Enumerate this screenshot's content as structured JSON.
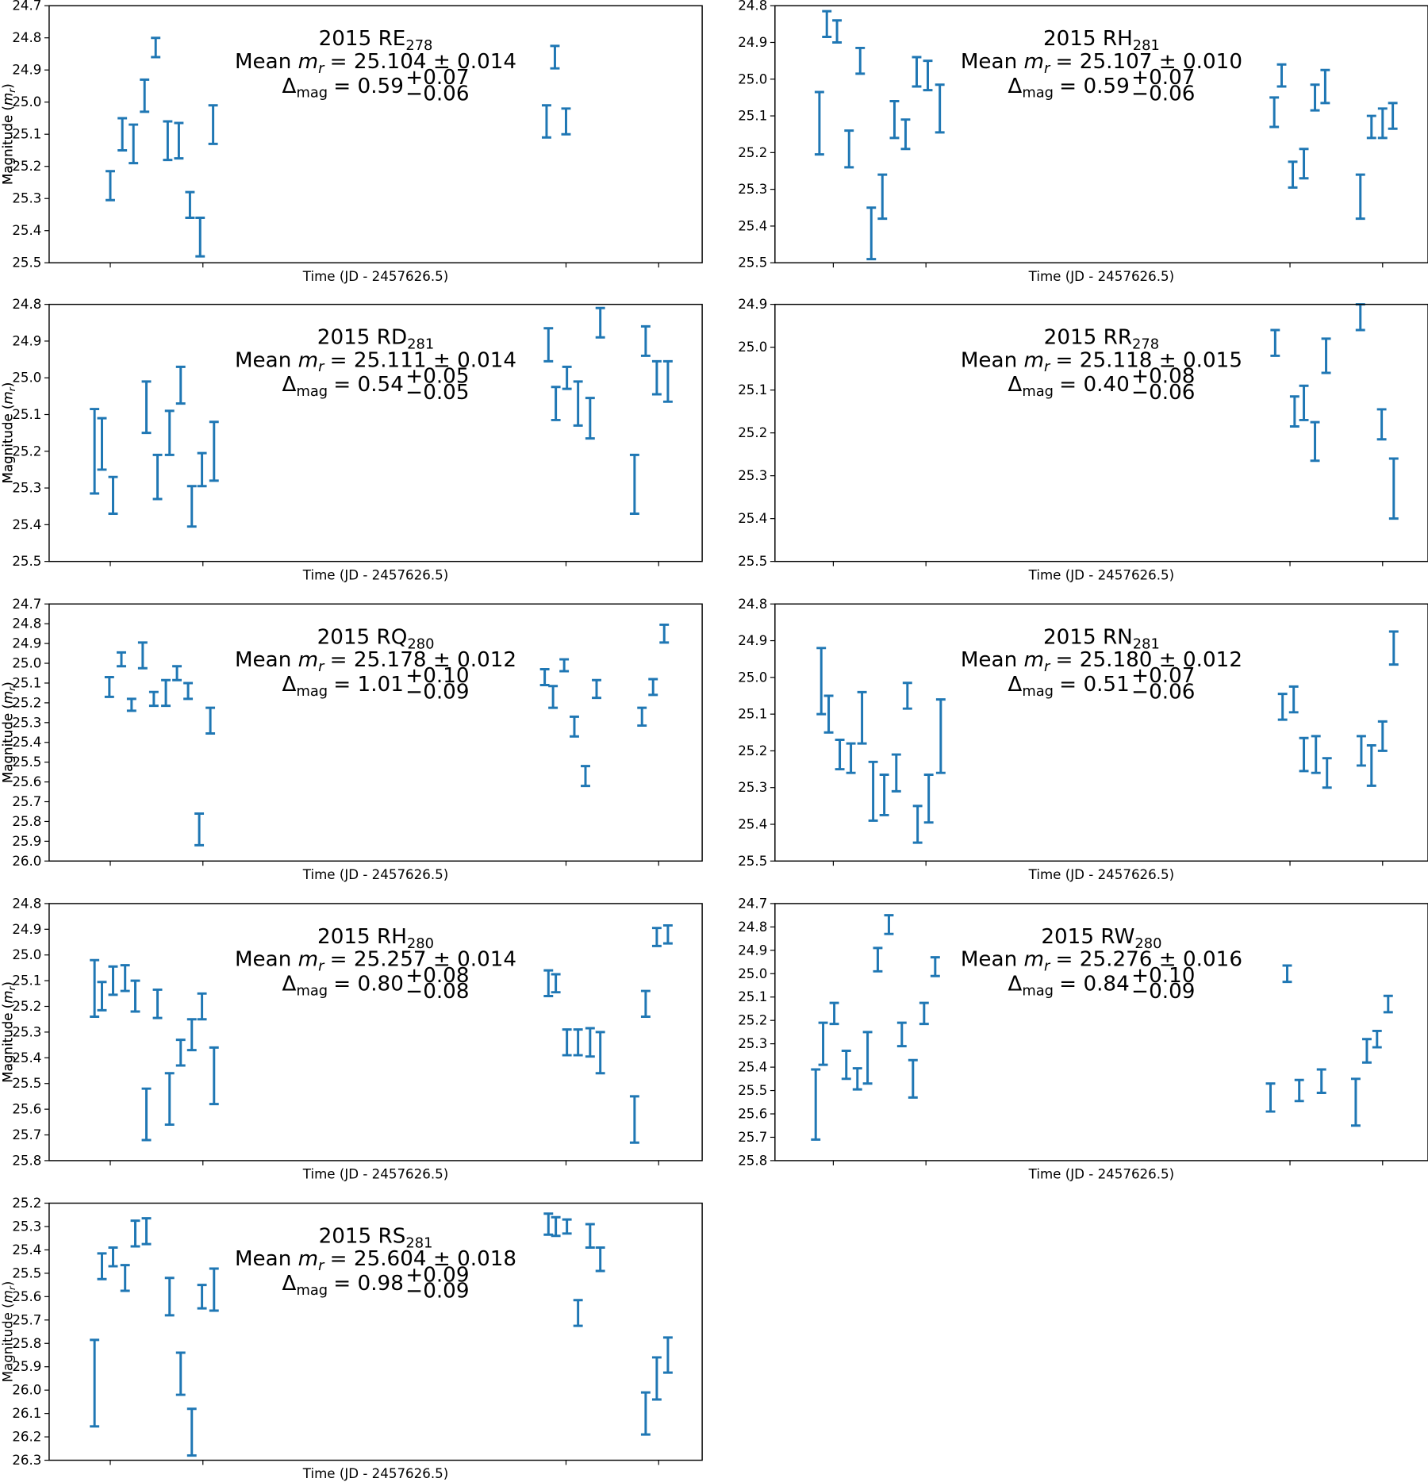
{
  "chart_data": [
    {
      "type": "errorbar",
      "title": "2015 RE",
      "title_sub": "278",
      "mean_label": "Mean",
      "mean_symbol": "m",
      "mean_symbol_sub": "r",
      "mean_text": "= 25.104 ± 0.014",
      "delta_symbol": "Δ",
      "delta_sub": "mag",
      "delta_text": "= 0.59",
      "delta_plus": "+0.07",
      "delta_minus": "−0.06",
      "x_label": "Time (JD - 2457626.5)",
      "y_label": "Magnitude (",
      "y_label_symbol": "m",
      "y_label_sub": "r",
      "y_label_close": ")",
      "y_inverted": true,
      "color": "#1f77b4",
      "xlim": [
        0,
        7.05
      ],
      "xticks": [
        0.66,
        1.66,
        5.58,
        6.58
      ],
      "ylim": [
        24.7,
        25.5
      ],
      "yticks": [
        24.7,
        24.8,
        24.9,
        {
          "value": 25,
          "label": "25.0"
        },
        25.1,
        25.2,
        25.3,
        25.4,
        25.5
      ],
      "x": [
        0.66,
        0.79,
        0.91,
        1.03,
        1.15,
        1.28,
        1.4,
        1.52,
        1.63,
        1.77,
        5.37,
        5.46,
        5.58
      ],
      "values": [
        25.26,
        25.1,
        25.13,
        24.98,
        24.83,
        25.12,
        25.12,
        25.32,
        25.42,
        25.07,
        25.06,
        24.86,
        25.06
      ],
      "errors": [
        0.045,
        0.05,
        0.06,
        0.05,
        0.03,
        0.06,
        0.055,
        0.04,
        0.06,
        0.06,
        0.05,
        0.035,
        0.04
      ]
    },
    {
      "type": "errorbar",
      "title": "2015 RH",
      "title_sub": "281",
      "mean_label": "Mean",
      "mean_symbol": "m",
      "mean_symbol_sub": "r",
      "mean_text": "= 25.107 ± 0.010",
      "delta_symbol": "Δ",
      "delta_sub": "mag",
      "delta_text": "= 0.59",
      "delta_plus": "+0.07",
      "delta_minus": "−0.06",
      "x_label": "Time (JD - 2457626.5)",
      "y_label": "Magnitude (",
      "y_label_symbol": "m",
      "y_label_sub": "r",
      "y_label_close": ")",
      "y_inverted": true,
      "color": "#1f77b4",
      "xlim": [
        0,
        7.05
      ],
      "xticks": [
        0.63,
        1.63,
        5.56,
        6.56
      ],
      "ylim": [
        24.8,
        25.5
      ],
      "yticks": [
        24.8,
        24.9,
        {
          "value": 25,
          "label": "25.0"
        },
        25.1,
        25.2,
        25.3,
        25.4,
        25.5
      ],
      "x": [
        0.48,
        0.56,
        0.67,
        0.8,
        0.92,
        1.04,
        1.16,
        1.29,
        1.41,
        1.53,
        1.65,
        1.78,
        5.39,
        5.47,
        5.59,
        5.71,
        5.83,
        5.94,
        6.32,
        6.44,
        6.56,
        6.67
      ],
      "values": [
        25.12,
        24.85,
        24.87,
        25.19,
        24.95,
        25.42,
        25.32,
        25.11,
        25.15,
        24.98,
        24.99,
        25.08,
        25.09,
        24.99,
        25.26,
        25.23,
        25.05,
        25.02,
        25.32,
        25.13,
        25.12,
        25.1
      ],
      "errors": [
        0.085,
        0.035,
        0.03,
        0.05,
        0.035,
        0.07,
        0.06,
        0.05,
        0.04,
        0.04,
        0.04,
        0.065,
        0.04,
        0.03,
        0.035,
        0.04,
        0.035,
        0.045,
        0.06,
        0.03,
        0.04,
        0.035
      ]
    },
    {
      "type": "errorbar",
      "title": "2015 RD",
      "title_sub": "281",
      "mean_label": "Mean",
      "mean_symbol": "m",
      "mean_symbol_sub": "r",
      "mean_text": "= 25.111 ± 0.014",
      "delta_symbol": "Δ",
      "delta_sub": "mag",
      "delta_text": "= 0.54",
      "delta_plus": "+0.05",
      "delta_minus": "−0.05",
      "x_label": "Time (JD - 2457626.5)",
      "y_label": "Magnitude (",
      "y_label_symbol": "m",
      "y_label_sub": "r",
      "y_label_close": ")",
      "y_inverted": true,
      "color": "#1f77b4",
      "xlim": [
        0,
        7.05
      ],
      "xticks": [
        0.66,
        1.66,
        5.58,
        6.58
      ],
      "ylim": [
        24.8,
        25.5
      ],
      "yticks": [
        24.8,
        24.9,
        {
          "value": 25,
          "label": "25.0"
        },
        25.1,
        25.2,
        25.3,
        25.4,
        25.5
      ],
      "x": [
        0.49,
        0.57,
        0.69,
        1.05,
        1.17,
        1.3,
        1.42,
        1.54,
        1.65,
        1.78,
        5.39,
        5.47,
        5.59,
        5.71,
        5.84,
        5.95,
        6.32,
        6.44,
        6.56,
        6.68
      ],
      "values": [
        25.2,
        25.18,
        25.32,
        25.08,
        25.27,
        25.15,
        25.02,
        25.35,
        25.25,
        25.2,
        24.91,
        25.07,
        25.0,
        25.07,
        25.11,
        24.85,
        25.29,
        24.9,
        25.0,
        25.01
      ],
      "errors": [
        0.115,
        0.07,
        0.05,
        0.07,
        0.06,
        0.06,
        0.05,
        0.055,
        0.045,
        0.08,
        0.045,
        0.045,
        0.03,
        0.06,
        0.055,
        0.04,
        0.08,
        0.04,
        0.045,
        0.055
      ]
    },
    {
      "type": "errorbar",
      "title": "2015 RR",
      "title_sub": "278",
      "mean_label": "Mean",
      "mean_symbol": "m",
      "mean_symbol_sub": "r",
      "mean_text": "= 25.118 ± 0.015",
      "delta_symbol": "Δ",
      "delta_sub": "mag",
      "delta_text": "= 0.40",
      "delta_plus": "+0.08",
      "delta_minus": "−0.06",
      "x_label": "Time (JD - 2457626.5)",
      "y_label": "Magnitude (",
      "y_label_symbol": "m",
      "y_label_sub": "r",
      "y_label_close": ")",
      "y_inverted": true,
      "color": "#1f77b4",
      "xlim": [
        0,
        7.05
      ],
      "xticks": [
        0.63,
        1.63,
        5.56,
        6.56
      ],
      "ylim": [
        24.9,
        25.5
      ],
      "yticks": [
        24.9,
        {
          "value": 25,
          "label": "25.0"
        },
        25.1,
        25.2,
        25.3,
        25.4,
        25.5
      ],
      "x": [
        5.4,
        5.61,
        5.71,
        5.83,
        5.95,
        6.32,
        6.55,
        6.68
      ],
      "values": [
        24.99,
        25.15,
        25.13,
        25.22,
        25.02,
        24.93,
        25.18,
        25.33
      ],
      "errors": [
        0.03,
        0.035,
        0.04,
        0.045,
        0.04,
        0.03,
        0.035,
        0.07
      ]
    },
    {
      "type": "errorbar",
      "title": "2015 RQ",
      "title_sub": "280",
      "mean_label": "Mean",
      "mean_symbol": "m",
      "mean_symbol_sub": "r",
      "mean_text": "= 25.178 ± 0.012",
      "delta_symbol": "Δ",
      "delta_sub": "mag",
      "delta_text": "= 1.01",
      "delta_plus": "+0.10",
      "delta_minus": "−0.09",
      "x_label": "Time (JD - 2457626.5)",
      "y_label": "Magnitude (",
      "y_label_symbol": "m",
      "y_label_sub": "r",
      "y_label_close": ")",
      "y_inverted": true,
      "color": "#1f77b4",
      "xlim": [
        0,
        7.05
      ],
      "xticks": [
        0.66,
        1.66,
        5.58,
        6.58
      ],
      "ylim": [
        24.7,
        26.0
      ],
      "yticks": [
        24.7,
        24.8,
        24.9,
        {
          "value": 25,
          "label": "25.0"
        },
        25.1,
        25.2,
        25.3,
        25.4,
        25.5,
        25.6,
        25.7,
        25.8,
        25.9,
        {
          "value": 26,
          "label": "26.0"
        }
      ],
      "x": [
        0.65,
        0.78,
        0.89,
        1.01,
        1.13,
        1.26,
        1.38,
        1.5,
        1.62,
        1.74,
        5.35,
        5.44,
        5.56,
        5.67,
        5.79,
        5.91,
        6.4,
        6.52,
        6.64
      ],
      "values": [
        25.12,
        24.98,
        25.21,
        24.96,
        25.18,
        25.15,
        25.05,
        25.14,
        25.84,
        25.29,
        25.07,
        25.17,
        25.01,
        25.32,
        25.57,
        25.13,
        25.27,
        25.12,
        24.85
      ],
      "errors": [
        0.05,
        0.035,
        0.03,
        0.065,
        0.035,
        0.065,
        0.035,
        0.04,
        0.08,
        0.065,
        0.04,
        0.055,
        0.03,
        0.05,
        0.05,
        0.045,
        0.045,
        0.04,
        0.045
      ]
    },
    {
      "type": "errorbar",
      "title": "2015 RN",
      "title_sub": "281",
      "mean_label": "Mean",
      "mean_symbol": "m",
      "mean_symbol_sub": "r",
      "mean_text": "= 25.180 ± 0.012",
      "delta_symbol": "Δ",
      "delta_sub": "mag",
      "delta_text": "= 0.51",
      "delta_plus": "+0.07",
      "delta_minus": "−0.06",
      "x_label": "Time (JD - 2457626.5)",
      "y_label": "Magnitude (",
      "y_label_symbol": "m",
      "y_label_sub": "r",
      "y_label_close": ")",
      "y_inverted": true,
      "color": "#1f77b4",
      "xlim": [
        0,
        7.05
      ],
      "xticks": [
        0.63,
        1.63,
        5.56,
        6.56
      ],
      "ylim": [
        24.8,
        25.5
      ],
      "yticks": [
        24.8,
        24.9,
        {
          "value": 25,
          "label": "25.0"
        },
        25.1,
        25.2,
        25.3,
        25.4,
        25.5
      ],
      "x": [
        0.5,
        0.58,
        0.7,
        0.82,
        0.94,
        1.06,
        1.18,
        1.31,
        1.43,
        1.54,
        1.66,
        1.79,
        5.48,
        5.6,
        5.71,
        5.84,
        5.96,
        6.33,
        6.44,
        6.56,
        6.68
      ],
      "values": [
        25.01,
        25.1,
        25.21,
        25.22,
        25.11,
        25.31,
        25.32,
        25.26,
        25.05,
        25.4,
        25.33,
        25.16,
        25.08,
        25.06,
        25.21,
        25.21,
        25.26,
        25.2,
        25.24,
        25.16,
        24.92
      ],
      "errors": [
        0.09,
        0.05,
        0.04,
        0.04,
        0.07,
        0.08,
        0.055,
        0.05,
        0.035,
        0.05,
        0.065,
        0.1,
        0.035,
        0.035,
        0.045,
        0.05,
        0.04,
        0.04,
        0.055,
        0.04,
        0.045
      ]
    },
    {
      "type": "errorbar",
      "title": "2015 RH",
      "title_sub": "280",
      "mean_label": "Mean",
      "mean_symbol": "m",
      "mean_symbol_sub": "r",
      "mean_text": "= 25.257 ± 0.014",
      "delta_symbol": "Δ",
      "delta_sub": "mag",
      "delta_text": "= 0.80",
      "delta_plus": "+0.08",
      "delta_minus": "−0.08",
      "x_label": "Time (JD - 2457626.5)",
      "y_label": "Magnitude (",
      "y_label_symbol": "m",
      "y_label_sub": "r",
      "y_label_close": ")",
      "y_inverted": true,
      "color": "#1f77b4",
      "xlim": [
        0,
        7.05
      ],
      "xticks": [
        0.66,
        1.66,
        5.58,
        6.58
      ],
      "ylim": [
        24.8,
        25.8
      ],
      "yticks": [
        24.8,
        24.9,
        {
          "value": 25,
          "label": "25.0"
        },
        25.1,
        25.2,
        25.3,
        25.4,
        25.5,
        25.6,
        25.7,
        25.8
      ],
      "x": [
        0.49,
        0.57,
        0.69,
        0.82,
        0.93,
        1.05,
        1.17,
        1.3,
        1.42,
        1.54,
        1.65,
        1.78,
        5.39,
        5.47,
        5.59,
        5.71,
        5.84,
        5.95,
        6.32,
        6.44,
        6.56,
        6.68
      ],
      "values": [
        25.13,
        25.16,
        25.1,
        25.09,
        25.16,
        25.62,
        25.19,
        25.56,
        25.38,
        25.31,
        25.2,
        25.47,
        25.11,
        25.11,
        25.34,
        25.34,
        25.34,
        25.38,
        25.64,
        25.19,
        24.93,
        24.92
      ],
      "errors": [
        0.11,
        0.055,
        0.055,
        0.05,
        0.06,
        0.1,
        0.055,
        0.1,
        0.05,
        0.06,
        0.05,
        0.11,
        0.05,
        0.035,
        0.05,
        0.05,
        0.055,
        0.08,
        0.09,
        0.05,
        0.035,
        0.035
      ]
    },
    {
      "type": "errorbar",
      "title": "2015 RW",
      "title_sub": "280",
      "mean_label": "Mean",
      "mean_symbol": "m",
      "mean_symbol_sub": "r",
      "mean_text": "= 25.276 ± 0.016",
      "delta_symbol": "Δ",
      "delta_sub": "mag",
      "delta_text": "= 0.84",
      "delta_plus": "+0.10",
      "delta_minus": "−0.09",
      "x_label": "Time (JD - 2457626.5)",
      "y_label": "Magnitude (",
      "y_label_symbol": "m",
      "y_label_sub": "r",
      "y_label_close": ")",
      "y_inverted": true,
      "color": "#1f77b4",
      "xlim": [
        0,
        7.05
      ],
      "xticks": [
        0.63,
        1.63,
        5.56,
        6.56
      ],
      "ylim": [
        24.7,
        25.8
      ],
      "yticks": [
        24.7,
        24.8,
        24.9,
        {
          "value": 25,
          "label": "25.0"
        },
        25.1,
        25.2,
        25.3,
        25.4,
        25.5,
        25.6,
        25.7,
        25.8
      ],
      "x": [
        0.44,
        0.52,
        0.64,
        0.77,
        0.89,
        1.0,
        1.11,
        1.23,
        1.37,
        1.49,
        1.61,
        1.73,
        5.35,
        5.53,
        5.66,
        5.9,
        6.27,
        6.39,
        6.5,
        6.62
      ],
      "values": [
        25.56,
        25.3,
        25.17,
        25.39,
        25.45,
        25.36,
        24.94,
        24.79,
        25.26,
        25.45,
        25.17,
        24.97,
        25.53,
        25.0,
        25.5,
        25.46,
        25.55,
        25.33,
        25.28,
        25.13
      ],
      "errors": [
        0.15,
        0.09,
        0.045,
        0.06,
        0.045,
        0.11,
        0.05,
        0.04,
        0.05,
        0.08,
        0.045,
        0.04,
        0.06,
        0.035,
        0.045,
        0.05,
        0.1,
        0.05,
        0.035,
        0.035
      ]
    },
    {
      "type": "errorbar",
      "title": "2015 RS",
      "title_sub": "281",
      "mean_label": "Mean",
      "mean_symbol": "m",
      "mean_symbol_sub": "r",
      "mean_text": "= 25.604 ± 0.018",
      "delta_symbol": "Δ",
      "delta_sub": "mag",
      "delta_text": "= 0.98",
      "delta_plus": "+0.09",
      "delta_minus": "−0.09",
      "x_label": "Time (JD - 2457626.5)",
      "y_label": "Magnitude (",
      "y_label_symbol": "m",
      "y_label_sub": "r",
      "y_label_close": ")",
      "y_inverted": true,
      "color": "#1f77b4",
      "xlim": [
        0,
        7.05
      ],
      "xticks": [
        0.66,
        1.66,
        5.58,
        6.58
      ],
      "ylim": [
        25.2,
        26.3
      ],
      "yticks": [
        25.2,
        25.3,
        25.4,
        25.5,
        25.6,
        25.7,
        25.8,
        25.9,
        {
          "value": 26,
          "label": "26.0"
        },
        26.1,
        26.2,
        26.3
      ],
      "x": [
        0.49,
        0.57,
        0.69,
        0.82,
        0.93,
        1.05,
        1.3,
        1.42,
        1.54,
        1.65,
        1.78,
        5.39,
        5.47,
        5.59,
        5.71,
        5.84,
        5.95,
        6.44,
        6.56,
        6.68
      ],
      "values": [
        25.97,
        25.47,
        25.43,
        25.52,
        25.33,
        25.32,
        25.6,
        25.93,
        26.18,
        25.6,
        25.57,
        25.29,
        25.3,
        25.3,
        25.67,
        25.34,
        25.44,
        26.1,
        25.95,
        25.85
      ],
      "errors": [
        0.185,
        0.055,
        0.04,
        0.055,
        0.055,
        0.055,
        0.08,
        0.09,
        0.1,
        0.05,
        0.09,
        0.045,
        0.04,
        0.03,
        0.055,
        0.05,
        0.05,
        0.09,
        0.09,
        0.075
      ]
    }
  ]
}
